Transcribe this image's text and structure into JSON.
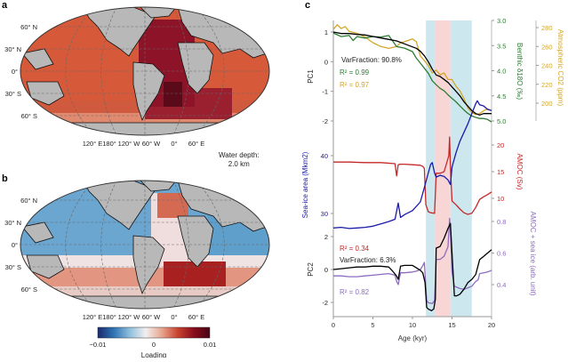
{
  "panels": {
    "a": {
      "label": "a",
      "lat_labels": [
        "60° N",
        "30° N",
        "0°",
        "30° S",
        "60° S"
      ],
      "lon_labels": [
        "120° E",
        "180°",
        "120° W",
        "60° W",
        "0°",
        "60° E"
      ],
      "depth_note_line1": "Water depth:",
      "depth_note_line2": "2.0 km"
    },
    "b": {
      "label": "b",
      "lat_labels": [
        "60° N",
        "30° N",
        "0°",
        "30° S",
        "60° S"
      ],
      "lon_labels": [
        "120° E",
        "180°",
        "120° W",
        "60° W",
        "0°",
        "60° E"
      ],
      "colorbar": {
        "ticks": [
          "−0.01",
          "0",
          "0.01"
        ],
        "tick_values": [
          -0.01,
          0,
          0.01
        ],
        "label": "Loading",
        "colors": [
          "#1a2a6c",
          "#2f74b5",
          "#8fbfdc",
          "#f2efef",
          "#e7a58e",
          "#c9432f",
          "#8a0d1c",
          "#450514"
        ]
      }
    },
    "c": {
      "label": "c"
    }
  },
  "colors": {
    "pc": "#000000",
    "benthic": "#2e7d32",
    "co2": "#d4a62a",
    "amoc": "#c62828",
    "seaice": "#1a1aa8",
    "amoc_seaice": "#8e6bbf",
    "band_blue": "#cde7ef",
    "band_pink": "#f8d6d6",
    "land": "#b8b8b8"
  },
  "chart_data": {
    "type": "line",
    "xlabel": "Age (kyr)",
    "xlim": [
      0,
      20
    ],
    "xticks": [
      0,
      5,
      10,
      15,
      20
    ],
    "shaded_intervals": [
      {
        "from": 11.7,
        "to": 12.8,
        "color": "blue"
      },
      {
        "from": 12.8,
        "to": 14.8,
        "color": "pink"
      },
      {
        "from": 14.8,
        "to": 17.5,
        "color": "blue"
      }
    ],
    "axes": {
      "pc1": {
        "label": "PC1",
        "ticks": [
          1,
          0,
          -1,
          -2
        ],
        "side": "left"
      },
      "benthic": {
        "label": "Benthic δ18O (‰)",
        "ticks": [
          3.0,
          3.5,
          4.0,
          4.5,
          5.0
        ],
        "side": "right",
        "inverted": true
      },
      "co2": {
        "label": "Atmospheric CO2 (ppm)",
        "ticks": [
          280,
          260,
          240,
          220,
          200
        ],
        "side": "right-outer"
      },
      "seaice": {
        "label": "Sea-ice area (Mkm2)",
        "ticks": [
          40,
          30
        ],
        "side": "left"
      },
      "amoc": {
        "label": "AMOC (Sv)",
        "ticks": [
          20,
          15,
          10
        ],
        "side": "right"
      },
      "pc2": {
        "label": "PC2",
        "ticks": [
          2,
          0,
          -2
        ],
        "side": "left"
      },
      "amoc_seaice": {
        "label": "AMOC + sea ice (arb. unit)",
        "ticks": [
          0.8,
          0.6,
          0.4
        ],
        "side": "right"
      }
    },
    "annotations": {
      "varfraction_pc1": "VarFraction: 90.8%",
      "r2_benthic": "R² = 0.99",
      "r2_co2": "R² = 0.97",
      "r2_amoc": "R² = 0.34",
      "varfraction_pc2": "VarFraction: 6.3%",
      "r2_amoc_seaice": "R² = 0.82"
    },
    "series": [
      {
        "name": "PC1",
        "axis": "pc1",
        "x": [
          0,
          1,
          2,
          3,
          4,
          5,
          6,
          7,
          8,
          9,
          10,
          10.5,
          11,
          11.5,
          12,
          12.5,
          13,
          13.5,
          14,
          14.5,
          15,
          15.5,
          16,
          16.5,
          17,
          17.5,
          18,
          18.5,
          19,
          19.5,
          20
        ],
        "y": [
          1.0,
          0.95,
          0.95,
          0.92,
          0.9,
          0.85,
          0.8,
          0.75,
          0.7,
          0.6,
          0.5,
          0.45,
          0.35,
          0.2,
          0.0,
          -0.25,
          -0.45,
          -0.5,
          -0.6,
          -0.7,
          -0.85,
          -1.0,
          -1.15,
          -1.35,
          -1.5,
          -1.65,
          -1.75,
          -1.8,
          -1.75,
          -1.75,
          -1.75
        ]
      },
      {
        "name": "Benthic δ18O",
        "axis": "benthic",
        "x": [
          0,
          1,
          2,
          2.5,
          3,
          4,
          5,
          6,
          7,
          8,
          9,
          10,
          10.5,
          11,
          11.5,
          12,
          12.5,
          13,
          13.5,
          14,
          14.5,
          15,
          15.5,
          16,
          16.5,
          17,
          17.5,
          18,
          18.5,
          19,
          19.5,
          20
        ],
        "y": [
          3.25,
          3.32,
          3.3,
          3.4,
          3.32,
          3.35,
          3.32,
          3.33,
          3.3,
          3.52,
          3.55,
          3.62,
          3.75,
          3.85,
          3.95,
          4.05,
          4.2,
          4.28,
          4.35,
          4.4,
          4.48,
          4.55,
          4.62,
          4.7,
          4.78,
          4.85,
          4.9,
          4.93,
          4.95,
          4.95,
          4.97,
          5.02
        ]
      },
      {
        "name": "Atmospheric CO2",
        "axis": "co2",
        "x": [
          0,
          0.5,
          1,
          1.5,
          2,
          3,
          4,
          5,
          6,
          7,
          8,
          8.5,
          9,
          10,
          10.5,
          11,
          11.5,
          12,
          12.5,
          13,
          13.5,
          14,
          14.5,
          15,
          15.5,
          16,
          16.5,
          17,
          17.5,
          18,
          18.5,
          19,
          19.5,
          20
        ],
        "y": [
          278,
          283,
          279,
          281,
          276,
          274,
          270,
          264,
          260,
          258,
          260,
          264,
          265,
          268,
          265,
          250,
          245,
          240,
          232,
          235,
          230,
          232,
          225,
          225,
          218,
          213,
          205,
          195,
          190,
          188,
          189,
          192,
          194,
          192
        ]
      },
      {
        "name": "AMOC",
        "axis": "amoc",
        "x": [
          0,
          2,
          4,
          6,
          7.8,
          8.0,
          8.2,
          8.4,
          9,
          10,
          11,
          11.3,
          11.5,
          11.7,
          12,
          12.3,
          12.8,
          13.0,
          13.5,
          14,
          14.3,
          14.6,
          14.7,
          14.8,
          15.0,
          15.5,
          16,
          16.5,
          17,
          17.5,
          18,
          18.5,
          19,
          19.5,
          20
        ],
        "y": [
          16.8,
          16.8,
          16.7,
          16.7,
          16.5,
          14.2,
          16.3,
          16.4,
          16.4,
          16.3,
          16.2,
          16.0,
          15.6,
          8.8,
          7.5,
          7.3,
          7.2,
          14.7,
          14.7,
          15.0,
          16.5,
          18.0,
          21.5,
          16.0,
          9.5,
          8.8,
          8.0,
          7.3,
          7.0,
          7.2,
          8.3,
          9.8,
          10.3,
          10.7,
          11.2
        ]
      },
      {
        "name": "Sea-ice area",
        "axis": "seaice",
        "x": [
          0,
          1,
          2,
          3,
          4,
          5,
          6,
          7,
          7.8,
          8.2,
          8.5,
          9,
          10,
          11,
          11.5,
          12,
          12.3,
          12.5,
          12.8,
          13,
          13.5,
          14,
          14.5,
          14.8,
          15,
          15.5,
          16,
          17,
          18,
          18.2,
          18.5,
          19,
          19.5,
          20
        ],
        "y": [
          27.5,
          27.6,
          27.4,
          27.5,
          27.6,
          27.8,
          28.2,
          28.6,
          29.0,
          31.8,
          29.3,
          29.8,
          30.5,
          32.0,
          34.5,
          37.0,
          38.5,
          38.8,
          37.0,
          36.3,
          36.6,
          36.4,
          35.8,
          35.0,
          38.0,
          40.5,
          42.5,
          45.5,
          49.0,
          49.5,
          48.8,
          48.6,
          48.0,
          47.8
        ]
      },
      {
        "name": "PC2",
        "axis": "pc2",
        "x": [
          0,
          1,
          2,
          3,
          4,
          5,
          6,
          7,
          7.5,
          8.0,
          8.2,
          8.5,
          9,
          10,
          10.5,
          11,
          11.3,
          11.6,
          11.8,
          12.0,
          12.4,
          12.7,
          12.9,
          13.0,
          13.5,
          14,
          14.5,
          14.8,
          15.0,
          15.3,
          15.6,
          16,
          16.5,
          17,
          17.5,
          18,
          18.5,
          19,
          19.5,
          20
        ],
        "y": [
          0.0,
          0.05,
          0.1,
          0.15,
          0.15,
          0.2,
          0.2,
          0.15,
          -0.1,
          -0.4,
          -0.6,
          0.2,
          0.25,
          0.25,
          0.1,
          -0.05,
          -0.2,
          -0.8,
          -2.3,
          -2.4,
          -2.5,
          -2.4,
          -1.8,
          1.3,
          1.4,
          1.9,
          2.5,
          2.8,
          1.0,
          -1.6,
          -1.6,
          -1.5,
          -1.2,
          -0.8,
          -0.6,
          -0.3,
          0.6,
          0.8,
          1.0,
          1.2
        ]
      },
      {
        "name": "AMOC + sea ice",
        "axis": "amoc_seaice",
        "x": [
          0,
          1,
          2,
          3,
          4,
          5,
          6,
          7,
          7.8,
          8.0,
          8.2,
          8.5,
          9,
          10,
          10.5,
          11,
          11.3,
          11.5,
          11.8,
          12,
          12.5,
          12.8,
          13.0,
          13.5,
          14,
          14.5,
          14.7,
          14.8,
          15.0,
          15.3,
          16,
          16.5,
          17,
          17.5,
          18,
          18.3,
          18.5,
          19,
          19.5,
          20
        ],
        "y": [
          0.455,
          0.455,
          0.45,
          0.45,
          0.455,
          0.46,
          0.465,
          0.47,
          0.46,
          0.42,
          0.4,
          0.475,
          0.475,
          0.48,
          0.485,
          0.495,
          0.52,
          0.54,
          0.3,
          0.285,
          0.28,
          0.3,
          0.56,
          0.56,
          0.58,
          0.64,
          0.82,
          0.75,
          0.48,
          0.39,
          0.375,
          0.37,
          0.38,
          0.39,
          0.42,
          0.43,
          0.47,
          0.475,
          0.48,
          0.49
        ]
      }
    ]
  }
}
